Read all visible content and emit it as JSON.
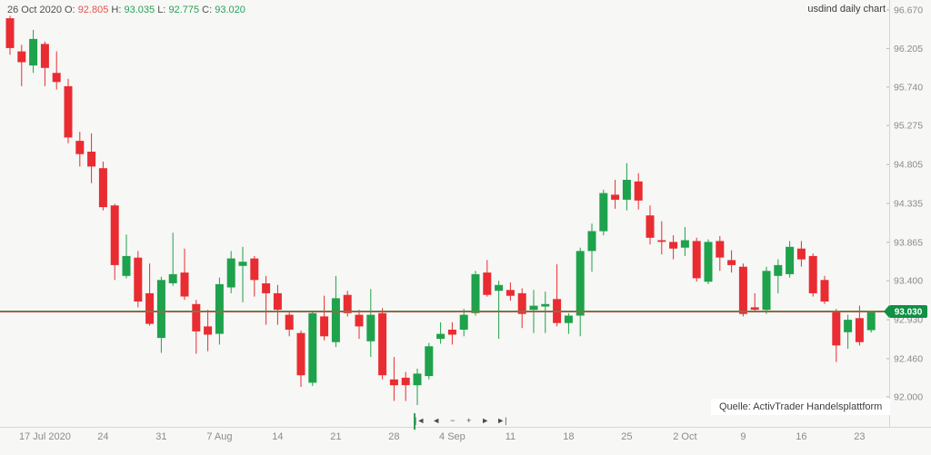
{
  "header": {
    "readout": {
      "date": "26 Oct 2020",
      "open_label": "O:",
      "open": "92.805",
      "high_label": "H:",
      "high": "93.035",
      "low_label": "L:",
      "low": "92.775",
      "close_label": "C:",
      "close": "93.020"
    },
    "title": "usdind daily chart"
  },
  "price_axis": {
    "labels": [
      "96.670",
      "96.205",
      "95.740",
      "95.275",
      "94.805",
      "94.335",
      "93.865",
      "93.400",
      "92.930",
      "92.460",
      "92.000"
    ],
    "badge": "93.030"
  },
  "time_axis": {
    "ticks": [
      {
        "label": "17 Jul 2020",
        "index": 3
      },
      {
        "label": "24",
        "index": 8
      },
      {
        "label": "31",
        "index": 13
      },
      {
        "label": "7 Aug",
        "index": 18
      },
      {
        "label": "14",
        "index": 23
      },
      {
        "label": "21",
        "index": 28
      },
      {
        "label": "28",
        "index": 33
      },
      {
        "label": "4 Sep",
        "index": 38
      },
      {
        "label": "11",
        "index": 43
      },
      {
        "label": "18",
        "index": 48
      },
      {
        "label": "25",
        "index": 53
      },
      {
        "label": "2 Oct",
        "index": 58
      },
      {
        "label": "9",
        "index": 63
      },
      {
        "label": "16",
        "index": 68
      },
      {
        "label": "23",
        "index": 73
      }
    ]
  },
  "toolbar": {
    "controls": [
      {
        "name": "jump-start",
        "glyph": "|◄"
      },
      {
        "name": "step-back",
        "glyph": "◄"
      },
      {
        "name": "zoom-out",
        "glyph": "−"
      },
      {
        "name": "zoom-in",
        "glyph": "+"
      },
      {
        "name": "step-forward",
        "glyph": "►"
      },
      {
        "name": "jump-end",
        "glyph": "►|"
      }
    ]
  },
  "source": {
    "label": "Quelle: ActivTrader Handelsplattform"
  },
  "colors": {
    "up": "#1ea24b",
    "down": "#e92c31",
    "badge": "#0f9044",
    "badge_text": "#ffffff",
    "hline_top": "#6f7b42",
    "hline_bottom": "#a8604e",
    "axis_text": "#8b8b8b",
    "separator": "#d6d6d6",
    "tick": "#b5b5b5"
  },
  "chart_data": {
    "type": "candlestick",
    "symbol": "usdind",
    "timeframe": "daily",
    "title": "usdind daily chart",
    "ylim": [
      92.0,
      96.67
    ],
    "y_axis_values": [
      96.67,
      96.205,
      95.74,
      95.275,
      94.805,
      94.335,
      93.865,
      93.4,
      92.93,
      92.46,
      92.0
    ],
    "current_price_line": 93.03,
    "grid": false,
    "candles": [
      {
        "d": "14 Jul",
        "o": 96.57,
        "h": 96.6,
        "l": 96.13,
        "c": 96.21
      },
      {
        "d": "15 Jul",
        "o": 96.17,
        "h": 96.25,
        "l": 95.75,
        "c": 96.04
      },
      {
        "d": "16 Jul",
        "o": 96.0,
        "h": 96.43,
        "l": 95.91,
        "c": 96.32
      },
      {
        "d": "17 Jul",
        "o": 96.26,
        "h": 96.29,
        "l": 95.75,
        "c": 95.97
      },
      {
        "d": "20 Jul",
        "o": 95.91,
        "h": 96.17,
        "l": 95.71,
        "c": 95.8
      },
      {
        "d": "21 Jul",
        "o": 95.75,
        "h": 95.84,
        "l": 95.06,
        "c": 95.13
      },
      {
        "d": "22 Jul",
        "o": 95.09,
        "h": 95.2,
        "l": 94.78,
        "c": 94.93
      },
      {
        "d": "23 Jul",
        "o": 94.96,
        "h": 95.18,
        "l": 94.58,
        "c": 94.78
      },
      {
        "d": "24 Jul",
        "o": 94.76,
        "h": 94.84,
        "l": 94.25,
        "c": 94.29
      },
      {
        "d": "27 Jul",
        "o": 94.31,
        "h": 94.33,
        "l": 93.41,
        "c": 93.59
      },
      {
        "d": "28 Jul",
        "o": 93.46,
        "h": 93.96,
        "l": 93.43,
        "c": 93.7
      },
      {
        "d": "29 Jul",
        "o": 93.68,
        "h": 93.76,
        "l": 93.08,
        "c": 93.15
      },
      {
        "d": "30 Jul",
        "o": 93.25,
        "h": 93.61,
        "l": 92.86,
        "c": 92.88
      },
      {
        "d": "31 Jul",
        "o": 92.71,
        "h": 93.45,
        "l": 92.53,
        "c": 93.41
      },
      {
        "d": "3 Aug",
        "o": 93.37,
        "h": 93.98,
        "l": 93.34,
        "c": 93.48
      },
      {
        "d": "4 Aug",
        "o": 93.5,
        "h": 93.79,
        "l": 93.17,
        "c": 93.21
      },
      {
        "d": "5 Aug",
        "o": 93.12,
        "h": 93.17,
        "l": 92.52,
        "c": 92.79
      },
      {
        "d": "6 Aug",
        "o": 92.85,
        "h": 93.05,
        "l": 92.55,
        "c": 92.75
      },
      {
        "d": "7 Aug",
        "o": 92.76,
        "h": 93.44,
        "l": 92.63,
        "c": 93.36
      },
      {
        "d": "10 Aug",
        "o": 93.32,
        "h": 93.76,
        "l": 93.25,
        "c": 93.67
      },
      {
        "d": "11 Aug",
        "o": 93.58,
        "h": 93.81,
        "l": 93.14,
        "c": 93.63
      },
      {
        "d": "12 Aug",
        "o": 93.67,
        "h": 93.7,
        "l": 93.21,
        "c": 93.41
      },
      {
        "d": "13 Aug",
        "o": 93.37,
        "h": 93.46,
        "l": 92.87,
        "c": 93.25
      },
      {
        "d": "14 Aug",
        "o": 93.25,
        "h": 93.35,
        "l": 92.87,
        "c": 93.05
      },
      {
        "d": "17 Aug",
        "o": 92.99,
        "h": 93.04,
        "l": 92.73,
        "c": 92.81
      },
      {
        "d": "18 Aug",
        "o": 92.77,
        "h": 92.8,
        "l": 92.12,
        "c": 92.26
      },
      {
        "d": "19 Aug",
        "o": 92.17,
        "h": 93.04,
        "l": 92.13,
        "c": 93.01
      },
      {
        "d": "20 Aug",
        "o": 92.97,
        "h": 93.22,
        "l": 92.68,
        "c": 92.73
      },
      {
        "d": "21 Aug",
        "o": 92.66,
        "h": 93.46,
        "l": 92.6,
        "c": 93.19
      },
      {
        "d": "24 Aug",
        "o": 93.23,
        "h": 93.28,
        "l": 92.97,
        "c": 93.01
      },
      {
        "d": "25 Aug",
        "o": 92.99,
        "h": 93.05,
        "l": 92.7,
        "c": 92.85
      },
      {
        "d": "26 Aug",
        "o": 92.67,
        "h": 93.3,
        "l": 92.48,
        "c": 92.99
      },
      {
        "d": "27 Aug",
        "o": 93.01,
        "h": 93.07,
        "l": 92.21,
        "c": 92.26
      },
      {
        "d": "28 Aug",
        "o": 92.21,
        "h": 92.48,
        "l": 91.95,
        "c": 92.14
      },
      {
        "d": "31 Aug",
        "o": 92.23,
        "h": 92.3,
        "l": 91.95,
        "c": 92.14
      },
      {
        "d": "1 Sep",
        "o": 92.14,
        "h": 92.34,
        "l": 91.9,
        "c": 92.28
      },
      {
        "d": "2 Sep",
        "o": 92.25,
        "h": 92.65,
        "l": 92.21,
        "c": 92.61
      },
      {
        "d": "3 Sep",
        "o": 92.7,
        "h": 92.9,
        "l": 92.64,
        "c": 92.76
      },
      {
        "d": "4 Sep",
        "o": 92.81,
        "h": 92.9,
        "l": 92.63,
        "c": 92.75
      },
      {
        "d": "7 Sep",
        "o": 92.81,
        "h": 93.06,
        "l": 92.73,
        "c": 92.99
      },
      {
        "d": "8 Sep",
        "o": 93.01,
        "h": 93.52,
        "l": 92.98,
        "c": 93.48
      },
      {
        "d": "9 Sep",
        "o": 93.5,
        "h": 93.65,
        "l": 93.21,
        "c": 93.23
      },
      {
        "d": "10 Sep",
        "o": 93.28,
        "h": 93.4,
        "l": 92.7,
        "c": 93.35
      },
      {
        "d": "11 Sep",
        "o": 93.29,
        "h": 93.38,
        "l": 93.16,
        "c": 93.22
      },
      {
        "d": "14 Sep",
        "o": 93.25,
        "h": 93.31,
        "l": 92.83,
        "c": 93.0
      },
      {
        "d": "15 Sep",
        "o": 93.05,
        "h": 93.29,
        "l": 92.77,
        "c": 93.1
      },
      {
        "d": "16 Sep",
        "o": 93.09,
        "h": 93.27,
        "l": 92.77,
        "c": 93.12
      },
      {
        "d": "17 Sep",
        "o": 93.18,
        "h": 93.6,
        "l": 92.85,
        "c": 92.89
      },
      {
        "d": "18 Sep",
        "o": 92.89,
        "h": 93.01,
        "l": 92.76,
        "c": 92.98
      },
      {
        "d": "21 Sep",
        "o": 92.98,
        "h": 93.8,
        "l": 92.73,
        "c": 93.76
      },
      {
        "d": "22 Sep",
        "o": 93.76,
        "h": 94.09,
        "l": 93.51,
        "c": 94.0
      },
      {
        "d": "23 Sep",
        "o": 94.0,
        "h": 94.5,
        "l": 93.95,
        "c": 94.46
      },
      {
        "d": "24 Sep",
        "o": 94.44,
        "h": 94.62,
        "l": 94.27,
        "c": 94.38
      },
      {
        "d": "25 Sep",
        "o": 94.38,
        "h": 94.82,
        "l": 94.25,
        "c": 94.62
      },
      {
        "d": "28 Sep",
        "o": 94.6,
        "h": 94.7,
        "l": 94.26,
        "c": 94.37
      },
      {
        "d": "29 Sep",
        "o": 94.19,
        "h": 94.31,
        "l": 93.84,
        "c": 93.92
      },
      {
        "d": "30 Sep",
        "o": 93.89,
        "h": 94.12,
        "l": 93.72,
        "c": 93.87
      },
      {
        "d": "1 Oct",
        "o": 93.87,
        "h": 93.95,
        "l": 93.66,
        "c": 93.79
      },
      {
        "d": "2 Oct",
        "o": 93.8,
        "h": 94.05,
        "l": 93.7,
        "c": 93.89
      },
      {
        "d": "5 Oct",
        "o": 93.88,
        "h": 93.92,
        "l": 93.39,
        "c": 93.43
      },
      {
        "d": "6 Oct",
        "o": 93.39,
        "h": 93.9,
        "l": 93.36,
        "c": 93.87
      },
      {
        "d": "7 Oct",
        "o": 93.88,
        "h": 93.94,
        "l": 93.52,
        "c": 93.68
      },
      {
        "d": "8 Oct",
        "o": 93.65,
        "h": 93.77,
        "l": 93.5,
        "c": 93.59
      },
      {
        "d": "9 Oct",
        "o": 93.57,
        "h": 93.61,
        "l": 92.97,
        "c": 93.0
      },
      {
        "d": "12 Oct",
        "o": 93.08,
        "h": 93.25,
        "l": 93.02,
        "c": 93.05
      },
      {
        "d": "13 Oct",
        "o": 93.05,
        "h": 93.57,
        "l": 93.0,
        "c": 93.52
      },
      {
        "d": "14 Oct",
        "o": 93.46,
        "h": 93.66,
        "l": 93.25,
        "c": 93.59
      },
      {
        "d": "15 Oct",
        "o": 93.48,
        "h": 93.88,
        "l": 93.44,
        "c": 93.81
      },
      {
        "d": "16 Oct",
        "o": 93.79,
        "h": 93.88,
        "l": 93.57,
        "c": 93.66
      },
      {
        "d": "19 Oct",
        "o": 93.7,
        "h": 93.73,
        "l": 93.21,
        "c": 93.25
      },
      {
        "d": "20 Oct",
        "o": 93.41,
        "h": 93.46,
        "l": 93.12,
        "c": 93.15
      },
      {
        "d": "21 Oct",
        "o": 93.02,
        "h": 93.06,
        "l": 92.42,
        "c": 92.62
      },
      {
        "d": "22 Oct",
        "o": 92.78,
        "h": 92.99,
        "l": 92.58,
        "c": 92.93
      },
      {
        "d": "23 Oct",
        "o": 92.95,
        "h": 93.1,
        "l": 92.62,
        "c": 92.66
      },
      {
        "d": "26 Oct",
        "o": 92.805,
        "h": 93.035,
        "l": 92.775,
        "c": 93.02
      }
    ]
  }
}
